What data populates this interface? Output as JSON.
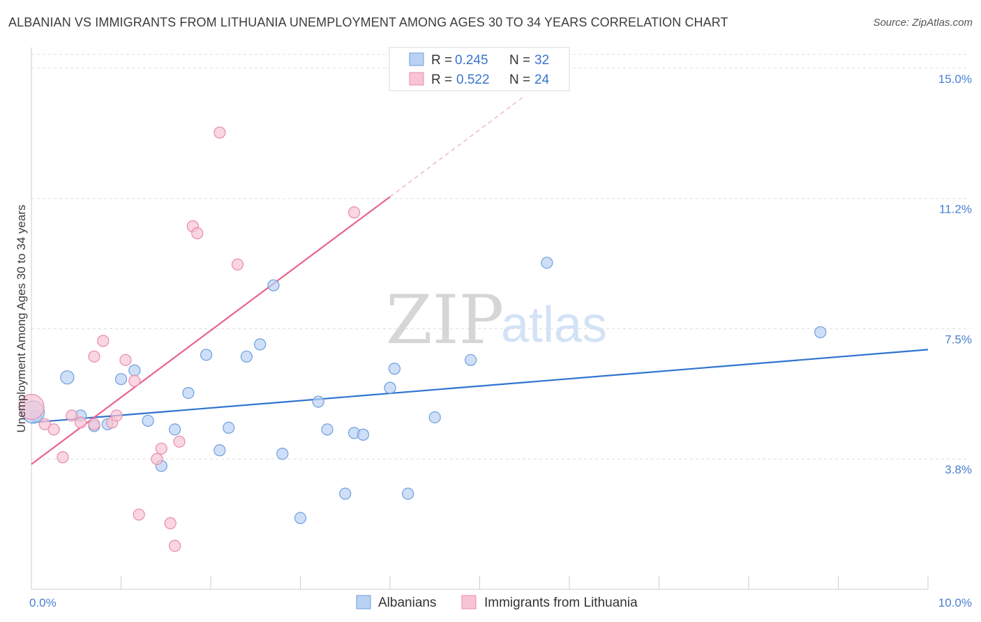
{
  "title": "ALBANIAN VS IMMIGRANTS FROM LITHUANIA UNEMPLOYMENT AMONG AGES 30 TO 34 YEARS CORRELATION CHART",
  "source": "Source: ZipAtlas.com",
  "watermark": {
    "zip": "ZIP",
    "atlas": "atlas"
  },
  "colors": {
    "blue_fill": "#b9d1f3",
    "blue_stroke": "#6e9ede",
    "blue_line": "#2f74d0",
    "pink_fill": "#f8c4d5",
    "pink_stroke": "#e98aa8",
    "pink_line": "#e8638e",
    "grid": "#dddddd",
    "axis": "#cccccc",
    "tick_text": "#4a7fd0"
  },
  "legend": {
    "rows": [
      {
        "r_label": "R = ",
        "r_value": "0.245",
        "n_label": "N = ",
        "n_value": "32"
      },
      {
        "r_label": "R = ",
        "r_value": "0.522",
        "n_label": "N = ",
        "n_value": "24"
      }
    ]
  },
  "chart_data": {
    "type": "scatter",
    "title": "ALBANIAN VS IMMIGRANTS FROM LITHUANIA UNEMPLOYMENT AMONG AGES 30 TO 34 YEARS CORRELATION CHART",
    "xlabel": "",
    "ylabel": "Unemployment Among Ages 30 to 34 years",
    "xlim": [
      0,
      10
    ],
    "ylim": [
      0,
      15.4
    ],
    "x_tick_labels": [
      "0.0%",
      "10.0%"
    ],
    "x_tick_values": [
      0,
      10
    ],
    "x_minor_ticks": [
      1,
      2,
      3,
      4,
      5,
      6,
      7,
      8,
      9
    ],
    "y_tick_labels": [
      "3.8%",
      "7.5%",
      "11.2%",
      "15.0%"
    ],
    "y_tick_values": [
      3.75,
      7.5,
      11.25,
      15.0
    ],
    "grid": true,
    "legend_position": "top-center",
    "series": [
      {
        "name": "Albanians",
        "color": "#6e9ede",
        "points": [
          [
            0.05,
            5.0
          ],
          [
            0.4,
            6.1
          ],
          [
            0.55,
            5.0
          ],
          [
            0.7,
            4.7
          ],
          [
            0.85,
            4.75
          ],
          [
            1.0,
            6.05
          ],
          [
            1.15,
            6.3
          ],
          [
            1.3,
            4.85
          ],
          [
            1.45,
            3.55
          ],
          [
            1.6,
            4.6
          ],
          [
            1.75,
            5.65
          ],
          [
            1.95,
            6.75
          ],
          [
            2.1,
            4.0
          ],
          [
            2.2,
            4.65
          ],
          [
            2.4,
            6.7
          ],
          [
            2.55,
            7.05
          ],
          [
            2.7,
            8.75
          ],
          [
            2.8,
            3.9
          ],
          [
            3.0,
            2.05
          ],
          [
            3.2,
            5.4
          ],
          [
            3.3,
            4.6
          ],
          [
            3.5,
            2.75
          ],
          [
            3.6,
            4.5
          ],
          [
            3.7,
            4.45
          ],
          [
            4.0,
            5.8
          ],
          [
            4.05,
            6.35
          ],
          [
            4.2,
            2.75
          ],
          [
            4.5,
            4.95
          ],
          [
            4.9,
            6.6
          ],
          [
            5.75,
            9.4
          ],
          [
            8.8,
            7.4
          ],
          [
            0.02,
            5.1
          ]
        ],
        "trend": {
          "x": [
            0,
            10
          ],
          "y": [
            4.8,
            6.9
          ]
        }
      },
      {
        "name": "Immigrants from Lithuania",
        "color": "#e98aa8",
        "points": [
          [
            0.0,
            5.25
          ],
          [
            0.15,
            4.75
          ],
          [
            0.25,
            4.6
          ],
          [
            0.35,
            3.8
          ],
          [
            0.45,
            5.0
          ],
          [
            0.55,
            4.8
          ],
          [
            0.7,
            4.75
          ],
          [
            0.7,
            6.7
          ],
          [
            0.8,
            7.15
          ],
          [
            0.9,
            4.8
          ],
          [
            0.95,
            5.0
          ],
          [
            1.05,
            6.6
          ],
          [
            1.15,
            6.0
          ],
          [
            1.2,
            2.15
          ],
          [
            1.4,
            3.75
          ],
          [
            1.45,
            4.05
          ],
          [
            1.55,
            1.9
          ],
          [
            1.6,
            1.25
          ],
          [
            1.65,
            4.25
          ],
          [
            1.8,
            10.45
          ],
          [
            1.85,
            10.25
          ],
          [
            2.1,
            13.15
          ],
          [
            2.3,
            9.35
          ],
          [
            3.6,
            10.85
          ]
        ],
        "trend": {
          "x": [
            0,
            4.0
          ],
          "y": [
            3.6,
            11.3
          ]
        },
        "trend_extension": {
          "x": [
            4.0,
            5.5
          ],
          "y": [
            11.3,
            14.2
          ]
        }
      }
    ]
  }
}
